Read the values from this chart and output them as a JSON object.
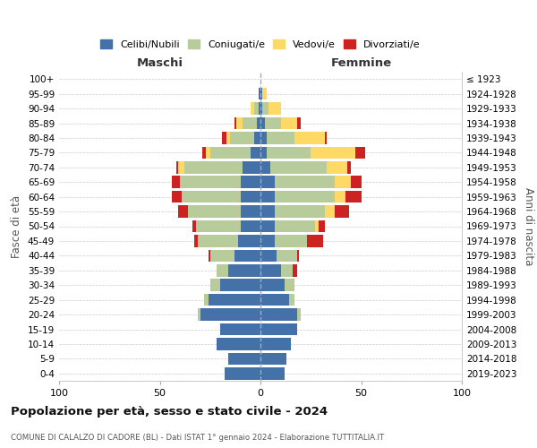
{
  "age_groups": [
    "0-4",
    "5-9",
    "10-14",
    "15-19",
    "20-24",
    "25-29",
    "30-34",
    "35-39",
    "40-44",
    "45-49",
    "50-54",
    "55-59",
    "60-64",
    "65-69",
    "70-74",
    "75-79",
    "80-84",
    "85-89",
    "90-94",
    "95-99",
    "100+"
  ],
  "birth_years": [
    "2019-2023",
    "2014-2018",
    "2009-2013",
    "2004-2008",
    "1999-2003",
    "1994-1998",
    "1989-1993",
    "1984-1988",
    "1979-1983",
    "1974-1978",
    "1969-1973",
    "1964-1968",
    "1959-1963",
    "1954-1958",
    "1949-1953",
    "1944-1948",
    "1939-1943",
    "1934-1938",
    "1929-1933",
    "1924-1928",
    "≤ 1923"
  ],
  "colors": {
    "celibi": "#4472a8",
    "coniugati": "#b8cb9a",
    "vedovi": "#ffd966",
    "divorziati": "#cc2222"
  },
  "males": {
    "celibi": [
      18,
      16,
      22,
      20,
      30,
      26,
      20,
      16,
      13,
      11,
      10,
      10,
      10,
      10,
      9,
      5,
      3,
      2,
      1,
      1,
      0
    ],
    "coniugati": [
      0,
      0,
      0,
      0,
      1,
      2,
      5,
      6,
      12,
      20,
      22,
      26,
      29,
      30,
      29,
      20,
      12,
      7,
      2,
      0,
      0
    ],
    "vedovi": [
      0,
      0,
      0,
      0,
      0,
      0,
      0,
      0,
      0,
      0,
      0,
      0,
      0,
      0,
      3,
      2,
      2,
      3,
      2,
      0,
      0
    ],
    "divorziati": [
      0,
      0,
      0,
      0,
      0,
      0,
      0,
      0,
      1,
      2,
      2,
      5,
      5,
      4,
      1,
      2,
      2,
      1,
      0,
      0,
      0
    ]
  },
  "females": {
    "celibi": [
      12,
      13,
      15,
      18,
      18,
      14,
      12,
      10,
      8,
      7,
      7,
      7,
      7,
      7,
      5,
      3,
      3,
      2,
      1,
      1,
      0
    ],
    "coniugati": [
      0,
      0,
      0,
      0,
      2,
      3,
      5,
      6,
      10,
      16,
      20,
      25,
      30,
      30,
      28,
      22,
      14,
      8,
      3,
      0,
      0
    ],
    "vedovi": [
      0,
      0,
      0,
      0,
      0,
      0,
      0,
      0,
      0,
      0,
      2,
      5,
      5,
      8,
      10,
      22,
      15,
      8,
      6,
      2,
      0
    ],
    "divorziati": [
      0,
      0,
      0,
      0,
      0,
      0,
      0,
      2,
      1,
      8,
      3,
      7,
      8,
      5,
      2,
      5,
      1,
      2,
      0,
      0,
      0
    ]
  },
  "title": "Popolazione per età, sesso e stato civile - 2024",
  "subtitle": "COMUNE DI CALALZO DI CADORE (BL) - Dati ISTAT 1° gennaio 2024 - Elaborazione TUTTITALIA.IT",
  "xlabel_left": "Maschi",
  "xlabel_right": "Femmine",
  "ylabel_left": "Fasce di età",
  "ylabel_right": "Anni di nascita",
  "legend_labels": [
    "Celibi/Nubili",
    "Coniugati/e",
    "Vedovi/e",
    "Divorziati/e"
  ],
  "xlim": 100,
  "background_color": "#ffffff",
  "grid_color": "#cccccc"
}
